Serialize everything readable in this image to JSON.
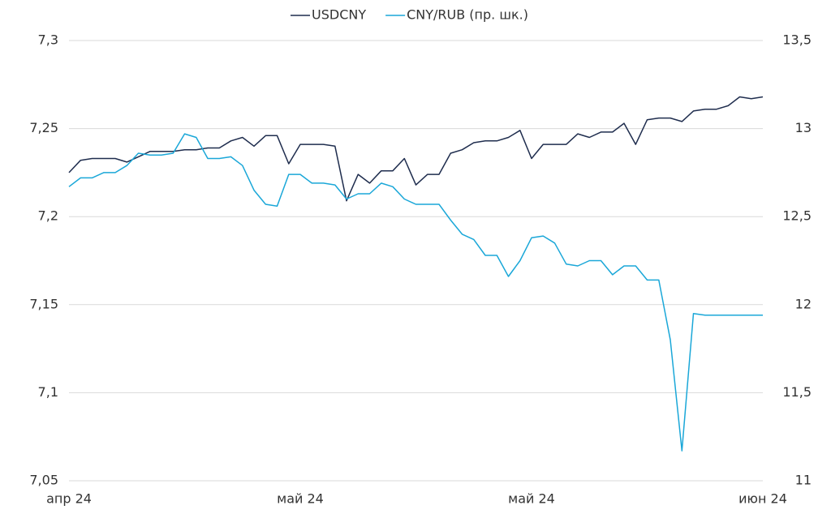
{
  "chart_data": {
    "type": "line",
    "categories": [
      "апр 24",
      null,
      null,
      null,
      null,
      null,
      null,
      null,
      null,
      null,
      null,
      null,
      null,
      null,
      null,
      null,
      null,
      null,
      null,
      null,
      "май 24",
      null,
      null,
      null,
      null,
      null,
      null,
      null,
      null,
      null,
      null,
      null,
      null,
      null,
      null,
      null,
      null,
      null,
      null,
      null,
      "май 24",
      null,
      null,
      null,
      null,
      null,
      null,
      null,
      null,
      null,
      null,
      null,
      null,
      null,
      null,
      null,
      null,
      null,
      null,
      null,
      "июн 24"
    ],
    "series": [
      {
        "name": "USDCNY",
        "color": "#1f2d4e",
        "values": [
          7.225,
          7.232,
          7.233,
          7.233,
          7.233,
          7.231,
          7.234,
          7.237,
          7.237,
          7.237,
          7.238,
          7.238,
          7.239,
          7.239,
          7.243,
          7.245,
          7.24,
          7.246,
          7.246,
          7.23,
          7.241,
          7.241,
          7.241,
          7.24,
          7.209,
          7.224,
          7.219,
          7.226,
          7.226,
          7.233,
          7.218,
          7.224,
          7.224,
          7.236,
          7.238,
          7.242,
          7.243,
          7.243,
          7.245,
          7.249,
          7.233,
          7.241,
          7.241,
          7.241,
          7.247,
          7.245,
          7.248,
          7.248,
          7.253,
          7.241,
          7.255,
          7.256,
          7.256,
          7.254,
          7.26,
          7.261,
          7.261,
          7.263,
          7.268,
          7.267,
          7.268
        ]
      },
      {
        "name": "CNY/RUB (пр. шк.)",
        "color": "#1aa7d8",
        "axis": "y2",
        "values": [
          12.67,
          12.72,
          12.72,
          12.75,
          12.75,
          12.79,
          12.86,
          12.85,
          12.85,
          12.86,
          12.97,
          12.95,
          12.83,
          12.83,
          12.84,
          12.79,
          12.65,
          12.57,
          12.56,
          12.74,
          12.74,
          12.69,
          12.69,
          12.68,
          12.6,
          12.63,
          12.63,
          12.69,
          12.67,
          12.6,
          12.57,
          12.57,
          12.57,
          12.48,
          12.4,
          12.37,
          12.28,
          12.28,
          12.16,
          12.25,
          12.38,
          12.39,
          12.35,
          12.23,
          12.22,
          12.25,
          12.25,
          12.17,
          12.22,
          12.22,
          12.14,
          12.14,
          11.8,
          11.17,
          11.95,
          11.94,
          11.94,
          11.94,
          11.94,
          11.94,
          11.94
        ]
      }
    ],
    "ylim": [
      7.05,
      7.3
    ],
    "yticks": [
      {
        "value": 7.05,
        "label": "7,05"
      },
      {
        "value": 7.1,
        "label": "7,1"
      },
      {
        "value": 7.15,
        "label": "7,15"
      },
      {
        "value": 7.2,
        "label": "7,2"
      },
      {
        "value": 7.25,
        "label": "7,25"
      },
      {
        "value": 7.3,
        "label": "7,3"
      }
    ],
    "y2lim": [
      11,
      13.5
    ],
    "y2ticks": [
      11,
      {
        "value": 11.5,
        "label": "11,5"
      },
      12,
      {
        "value": 12.5,
        "label": "12,5"
      },
      13,
      {
        "value": 13.5,
        "label": "13,5"
      }
    ],
    "grid": true,
    "legend": "top"
  }
}
